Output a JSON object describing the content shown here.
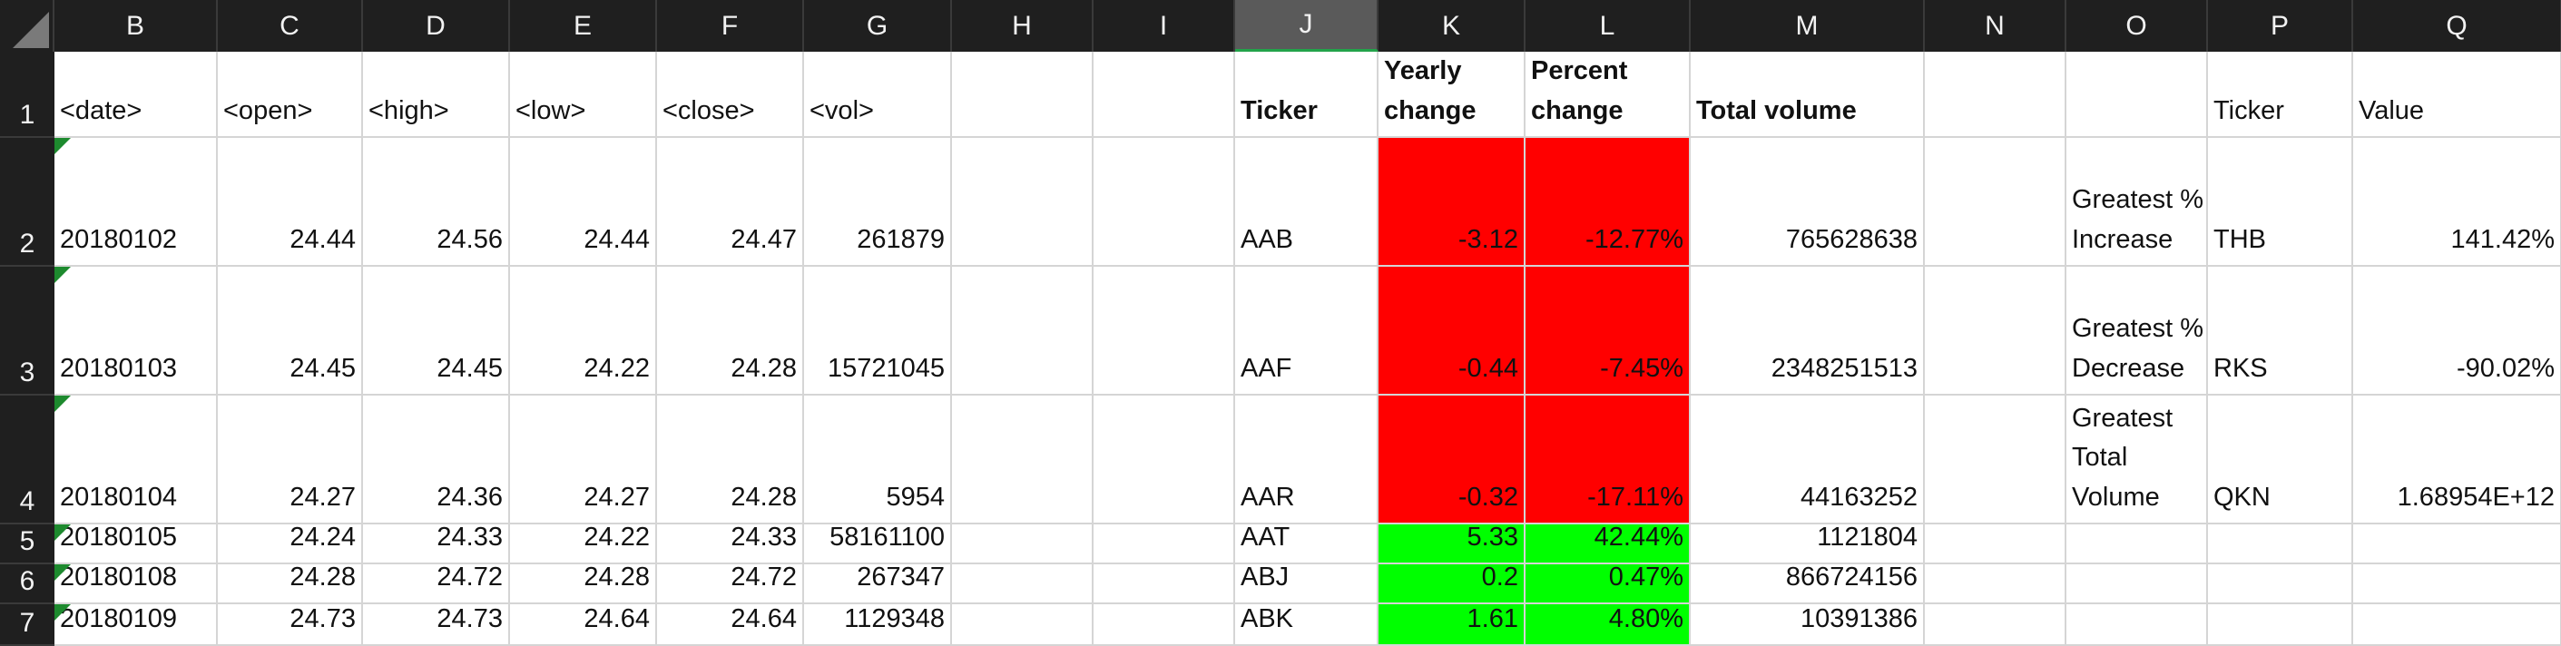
{
  "columns": [
    "B",
    "C",
    "D",
    "E",
    "F",
    "G",
    "H",
    "I",
    "J",
    "K",
    "L",
    "M",
    "N",
    "O",
    "P",
    "Q"
  ],
  "selected_column": "J",
  "rows": [
    "1",
    "2",
    "3",
    "4",
    "5",
    "6",
    "7"
  ],
  "headers": {
    "date": "<date>",
    "open": "<open>",
    "high": "<high>",
    "low": "<low>",
    "close": "<close>",
    "vol": "<vol>",
    "ticker": "Ticker",
    "yearly_1": "Yearly",
    "yearly_2": "change",
    "percent_1": "Percent",
    "percent_2": "change",
    "total_volume": "Total volume",
    "ticker2": "Ticker",
    "value": "Value"
  },
  "data_rows": [
    {
      "date": "20180102",
      "open": "24.44",
      "high": "24.56",
      "low": "24.44",
      "close": "24.47",
      "vol": "261879",
      "ticker": "AAB",
      "yearly": "-3.12",
      "percent": "-12.77%",
      "total": "765628638",
      "fill": "#ff0000"
    },
    {
      "date": "20180103",
      "open": "24.45",
      "high": "24.45",
      "low": "24.22",
      "close": "24.28",
      "vol": "15721045",
      "ticker": "AAF",
      "yearly": "-0.44",
      "percent": "-7.45%",
      "total": "2348251513",
      "fill": "#ff0000"
    },
    {
      "date": "20180104",
      "open": "24.27",
      "high": "24.36",
      "low": "24.27",
      "close": "24.28",
      "vol": "5954",
      "ticker": "AAR",
      "yearly": "-0.32",
      "percent": "-17.11%",
      "total": "44163252",
      "fill": "#ff0000"
    },
    {
      "date": "20180105",
      "open": "24.24",
      "high": "24.33",
      "low": "24.22",
      "close": "24.33",
      "vol": "58161100",
      "ticker": "AAT",
      "yearly": "5.33",
      "percent": "42.44%",
      "total": "1121804",
      "fill": "#00ff00"
    },
    {
      "date": "20180108",
      "open": "24.28",
      "high": "24.72",
      "low": "24.28",
      "close": "24.72",
      "vol": "267347",
      "ticker": "ABJ",
      "yearly": "0.2",
      "percent": "0.47%",
      "total": "866724156",
      "fill": "#00ff00"
    },
    {
      "date": "20180109",
      "open": "24.73",
      "high": "24.73",
      "low": "24.64",
      "close": "24.64",
      "vol": "1129348",
      "ticker": "ABK",
      "yearly": "1.61",
      "percent": "4.80%",
      "total": "10391386",
      "fill": "#00ff00"
    }
  ],
  "summary": [
    {
      "label_1": "Greatest %",
      "label_2": "Increase",
      "label_3": "",
      "ticker": "THB",
      "value": "141.42%"
    },
    {
      "label_1": "Greatest %",
      "label_2": "Decrease",
      "label_3": "",
      "ticker": "RKS",
      "value": "-90.02%"
    },
    {
      "label_1": "Greatest",
      "label_2": "Total",
      "label_3": "Volume",
      "ticker": "QKN",
      "value": "1.68954E+12"
    }
  ],
  "colors": {
    "negative_fill": "#ff0000",
    "positive_fill": "#00ff00",
    "header_bg": "#1f1f1f",
    "selected_header_bg": "#5a5a5a",
    "text_flag": "#1d8a2e"
  }
}
